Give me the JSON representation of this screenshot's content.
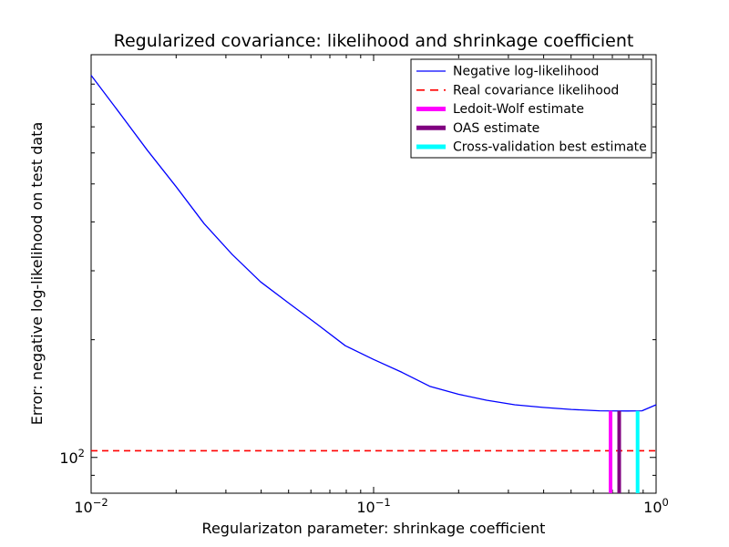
{
  "figure": {
    "title": "Regularized covariance: likelihood and shrinkage coefficient",
    "xlabel": "Regularizaton parameter: shrinkage coefficient",
    "ylabel": "Error: negative log-likelihood on test data",
    "background": "#ffffff",
    "axis_color": "#000000"
  },
  "chart_data": {
    "type": "line",
    "x_scale": "log",
    "y_scale": "log",
    "xlim": [
      0.01,
      1.0
    ],
    "ylim": [
      81,
      1070
    ],
    "grid": false,
    "x_ticks": [
      {
        "value": 0.01,
        "base": "10",
        "exp": "−2"
      },
      {
        "value": 0.1,
        "base": "10",
        "exp": "−1"
      },
      {
        "value": 1.0,
        "base": "10",
        "exp": "0"
      }
    ],
    "y_ticks": [
      {
        "value": 100,
        "base": "10",
        "exp": "2"
      }
    ],
    "series": [
      {
        "name": "Negative log-likelihood",
        "color": "#0000ff",
        "style": "solid",
        "x": [
          0.01,
          0.0126,
          0.0158,
          0.02,
          0.0251,
          0.0316,
          0.0398,
          0.0501,
          0.0631,
          0.0794,
          0.1,
          0.126,
          0.158,
          0.2,
          0.251,
          0.316,
          0.398,
          0.501,
          0.631,
          0.794,
          0.891,
          1.0
        ],
        "y": [
          948,
          760,
          610,
          492,
          396,
          330,
          281,
          248,
          219,
          193,
          178,
          165,
          152,
          145,
          140,
          136.3,
          134.2,
          132.6,
          131.6,
          131.4,
          131.6,
          136.3
        ]
      },
      {
        "name": "Real covariance likelihood",
        "color": "#ff0000",
        "style": "dashed",
        "y_const": 104
      }
    ],
    "vlines": [
      {
        "name": "Ledoit-Wolf estimate",
        "color": "#ff00ff",
        "x": 0.69,
        "y_top": 131.5
      },
      {
        "name": "OAS estimate",
        "color": "#800080",
        "x": 0.74,
        "y_top": 131.5
      },
      {
        "name": "Cross-validation best estimate",
        "color": "#00ffff",
        "x": 0.86,
        "y_top": 131.5
      }
    ],
    "legend": {
      "position": "upper-right",
      "entries": [
        {
          "label": "Negative log-likelihood",
          "color": "#0000ff",
          "sample": "line"
        },
        {
          "label": "Real covariance likelihood",
          "color": "#ff0000",
          "sample": "dashed"
        },
        {
          "label": "Ledoit-Wolf estimate",
          "color": "#ff00ff",
          "sample": "thick"
        },
        {
          "label": "OAS estimate",
          "color": "#800080",
          "sample": "thick"
        },
        {
          "label": "Cross-validation best estimate",
          "color": "#00ffff",
          "sample": "thick"
        }
      ]
    }
  }
}
